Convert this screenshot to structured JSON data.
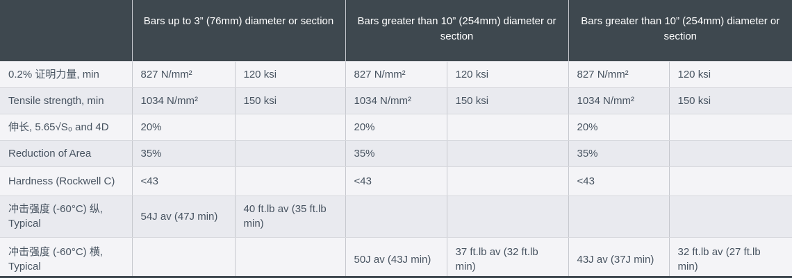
{
  "table": {
    "corner_label": "",
    "column_groups": [
      {
        "label": "Bars up to 3” (76mm) diameter or section"
      },
      {
        "label": "Bars greater than 10” (254mm) diameter or section"
      },
      {
        "label": "Bars greater than 10” (254mm) diameter or section"
      }
    ],
    "rows": [
      {
        "label": "0.2% 证明力量, min",
        "cells": [
          "827 N/mm²",
          "120 ksi",
          "827 N/mm²",
          "120 ksi",
          "827 N/mm²",
          "120 ksi"
        ]
      },
      {
        "label": "Tensile strength, min",
        "cells": [
          "1034 N/mm²",
          "150 ksi",
          "1034 N/mm²",
          "150 ksi",
          "1034 N/mm²",
          "150 ksi"
        ]
      },
      {
        "label": "伸长, 5.65√S₀ and 4D",
        "cells": [
          "20%",
          "",
          "20%",
          "",
          "20%",
          ""
        ]
      },
      {
        "label": "Reduction of Area",
        "cells": [
          "35%",
          "",
          "35%",
          "",
          "35%",
          ""
        ]
      },
      {
        "label": "Hardness (Rockwell C)",
        "cells": [
          "<43",
          "",
          "<43",
          "",
          "<43",
          ""
        ]
      },
      {
        "label": "冲击强度 (-60°C) 纵, Typical",
        "cells": [
          "54J av (47J min)",
          "40 ft.lb av (35 ft.lb min)",
          "",
          "",
          "",
          ""
        ]
      },
      {
        "label": "冲击强度 (-60°C) 横, Typical",
        "cells": [
          "",
          "",
          "50J av (43J min)",
          "37 ft.lb av (32 ft.lb min)",
          "43J av (37J min)",
          "32 ft.lb av (27 ft.lb min)"
        ]
      }
    ],
    "colors": {
      "header_bg": "#3e484f",
      "header_text": "#ffffff",
      "row_odd_bg": "#f4f4f7",
      "row_even_bg": "#e9eaef",
      "border_vertical": "#c6c8ce",
      "border_horizontal": "#d7d8dd",
      "body_text": "#475360"
    }
  }
}
